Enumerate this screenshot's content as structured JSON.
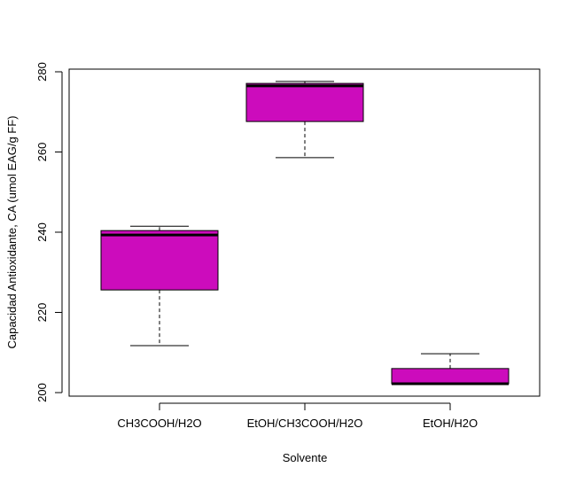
{
  "chart_data": {
    "type": "boxplot",
    "title": "",
    "xlabel": "Solvente",
    "ylabel": "Capacidad Antioxidante, CA (umol EAG/g FF)",
    "ylim": [
      200,
      280
    ],
    "yticks": [
      200,
      220,
      240,
      260,
      280
    ],
    "grid": false,
    "legend": null,
    "box_color": "#cc0cbc",
    "categories": [
      "CH3COOH/H2O",
      "EtOH/CH3COOH/H2O",
      "EtOH/H2O"
    ],
    "series": [
      {
        "name": "CH3COOH/H2O",
        "min": 211.7,
        "q1": 225.6,
        "median": 239.3,
        "q3": 240.4,
        "max": 241.5
      },
      {
        "name": "EtOH/CH3COOH/H2O",
        "min": 258.6,
        "q1": 267.6,
        "median": 276.5,
        "q3": 277.1,
        "max": 277.6
      },
      {
        "name": "EtOH/H2O",
        "min": 202.2,
        "q1": 202.2,
        "median": 202.2,
        "q3": 206.0,
        "max": 209.7
      }
    ]
  }
}
